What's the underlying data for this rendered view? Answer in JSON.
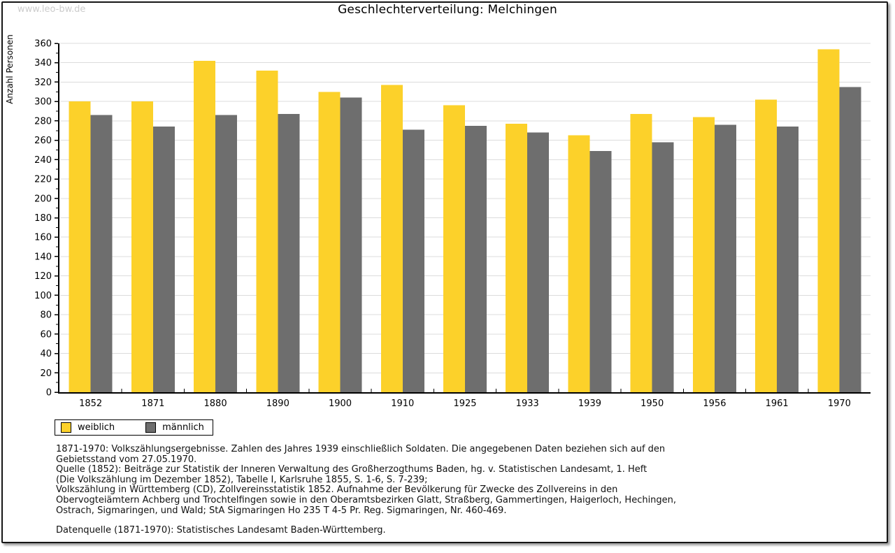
{
  "watermark": "www.leo-bw.de",
  "title": "Geschlechterverteilung: Melchingen",
  "chart_data": {
    "type": "bar",
    "title": "Geschlechterverteilung: Melchingen",
    "xlabel": "",
    "ylabel": "Anzahl Personen",
    "categories": [
      "1852",
      "1871",
      "1880",
      "1890",
      "1900",
      "1910",
      "1925",
      "1933",
      "1939",
      "1950",
      "1956",
      "1961",
      "1970"
    ],
    "series": [
      {
        "name": "weiblich",
        "color": "#FCD12A",
        "values": [
          300,
          300,
          342,
          332,
          310,
          317,
          296,
          277,
          265,
          287,
          284,
          302,
          354
        ]
      },
      {
        "name": "männlich",
        "color": "#6E6E6E",
        "values": [
          286,
          274,
          286,
          287,
          304,
          271,
          275,
          268,
          249,
          258,
          276,
          274,
          315
        ]
      }
    ],
    "ylim": [
      0,
      360
    ],
    "ytick_step": 20,
    "ytick_minor_step": 10,
    "grid": true,
    "gridline_color": "#dcdcdc",
    "axis_color": "#000000",
    "legend_position": "bottom-left"
  },
  "footer": {
    "lines": [
      "1871-1970: Volkszählungsergebnisse. Zahlen des Jahres 1939 einschließlich Soldaten. Die angegebenen Daten beziehen sich auf den",
      "Gebietsstand vom 27.05.1970.",
      "Quelle (1852): Beiträge zur Statistik der Inneren Verwaltung des Großherzogthums Baden, hg. v. Statistischen Landesamt, 1. Heft",
      "(Die Volkszählung im Dezember 1852), Tabelle I, Karlsruhe 1855, S. 1-6, S. 7-239;",
      "Volkszählung in Württemberg (CD), Zollvereinsstatistik 1852. Aufnahme der Bevölkerung für Zwecke des Zollvereins in den",
      "Obervogteiämtern Achberg und Trochtelfingen sowie in den Oberamtsbezirken Glatt, Straßberg, Gammertingen, Haigerloch, Hechingen,",
      "Ostrach, Sigmaringen, und Wald; StA Sigmaringen Ho 235 T 4-5 Pr. Reg. Sigmaringen, Nr. 460-469."
    ],
    "source": "Datenquelle (1871-1970): Statistisches Landesamt Baden-Württemberg."
  }
}
